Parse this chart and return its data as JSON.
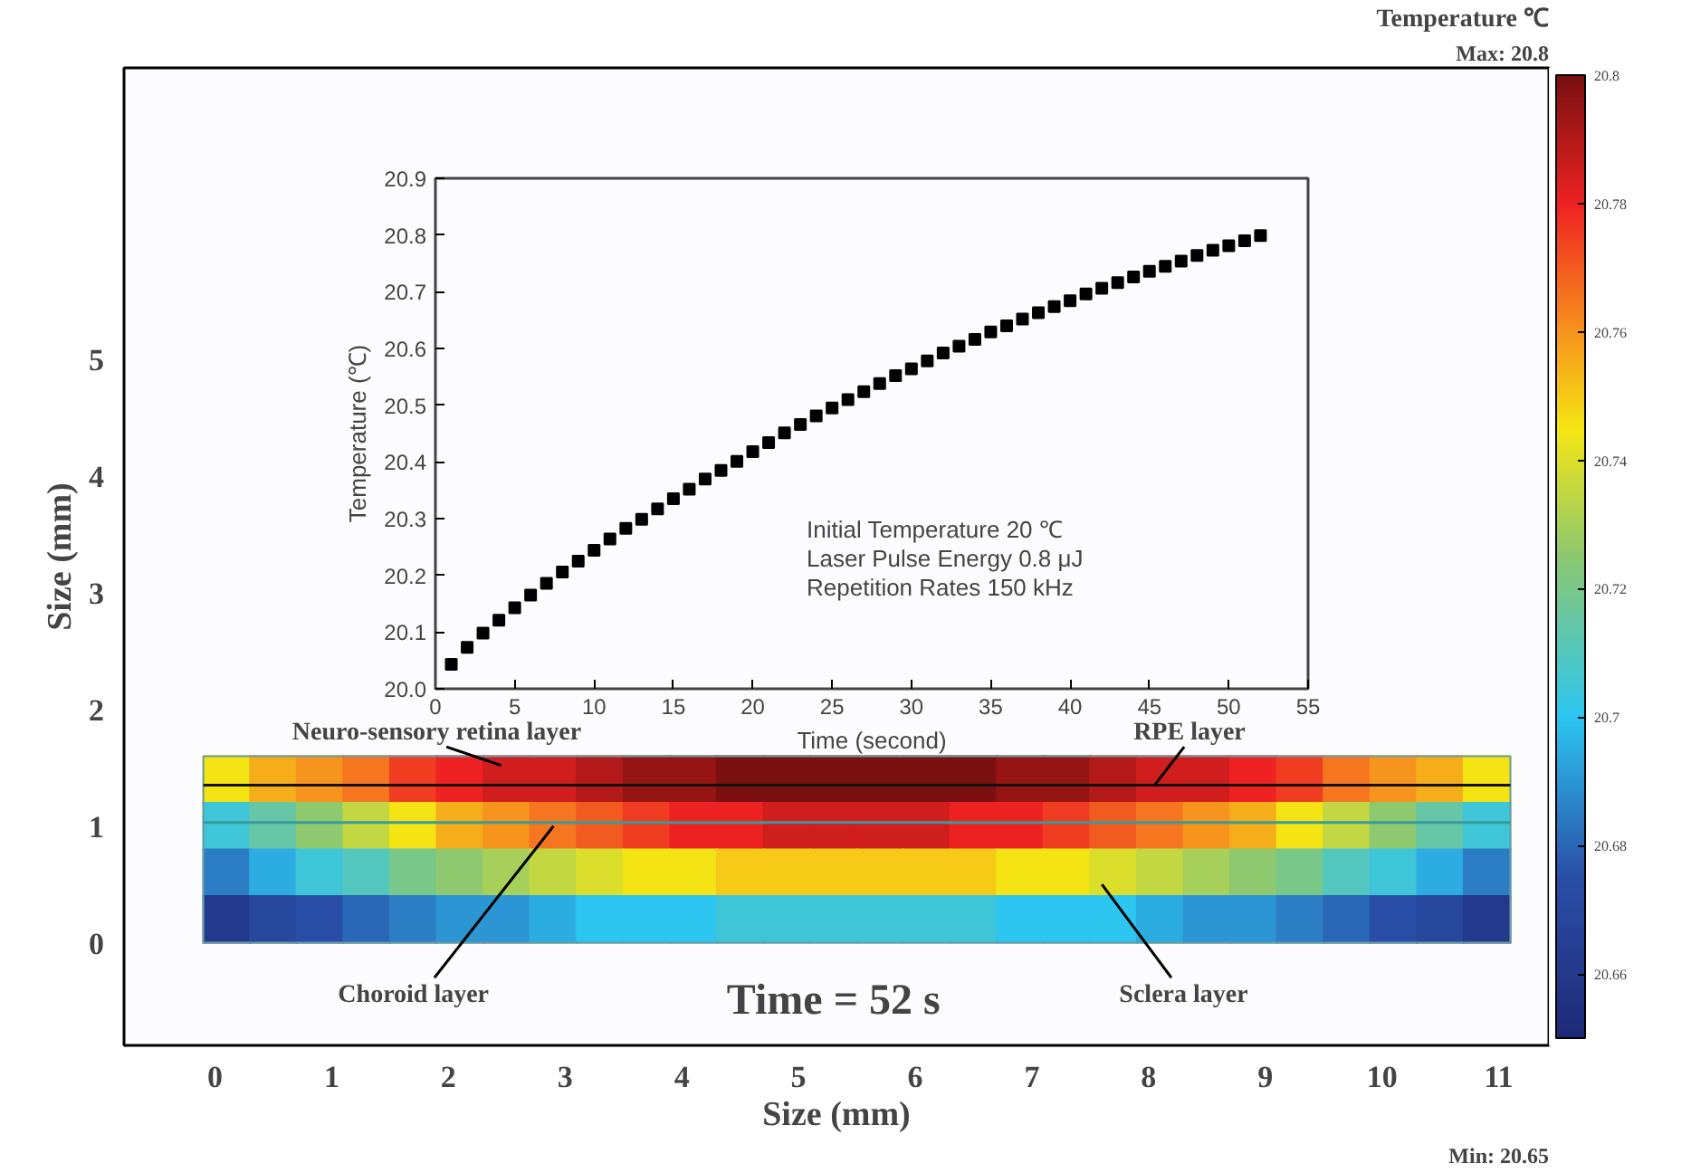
{
  "chart_data": [
    {
      "type": "scatter",
      "xlabel": "Size (mm)",
      "ylabel": "Size (mm)",
      "clabel": "Temperature ℃",
      "marker": "square",
      "x": [
        0.1,
        0.5,
        0.9,
        1.3,
        1.7,
        2.1,
        2.5,
        2.9,
        3.3,
        3.7,
        4.1,
        4.5,
        4.9,
        5.3,
        5.7,
        6.1,
        6.5,
        6.9,
        7.3,
        7.7,
        8.1,
        8.5,
        8.9,
        9.3,
        9.7,
        10.1,
        10.5,
        10.9,
        0.1,
        0.5,
        0.9,
        1.3,
        1.7,
        2.1,
        2.5,
        2.9,
        3.3,
        3.7,
        4.1,
        4.5,
        4.9,
        5.3,
        5.7,
        6.1,
        6.5,
        6.9,
        7.3,
        7.7,
        8.1,
        8.5,
        8.9,
        9.3,
        9.7,
        10.1,
        10.5,
        10.9,
        0.1,
        0.5,
        0.9,
        1.3,
        1.7,
        2.1,
        2.5,
        2.9,
        3.3,
        3.7,
        4.1,
        4.5,
        4.9,
        5.3,
        5.7,
        6.1,
        6.5,
        6.9,
        7.3,
        7.7,
        8.1,
        8.5,
        8.9,
        9.3,
        9.7,
        10.1,
        10.5,
        10.9,
        0.1,
        0.5,
        0.9,
        1.3,
        1.7,
        2.1,
        2.5,
        2.9,
        3.3,
        3.7,
        4.1,
        4.5,
        4.9,
        5.3,
        5.7,
        6.1,
        6.5,
        6.9,
        7.3,
        7.7,
        8.1,
        8.5,
        8.9,
        9.3,
        9.7,
        10.1,
        10.5,
        10.9
      ],
      "values": [
        1.4,
        1.4,
        1.4,
        1.4,
        1.4,
        1.4,
        1.4,
        1.4,
        1.4,
        1.4,
        1.4,
        1.4,
        1.4,
        1.4,
        1.4,
        1.4,
        1.4,
        1.4,
        1.4,
        1.4,
        1.4,
        1.4,
        1.4,
        1.4,
        1.4,
        1.4,
        1.4,
        1.4,
        1.0,
        1.0,
        1.0,
        1.0,
        1.0,
        1.0,
        1.0,
        1.0,
        1.0,
        1.0,
        1.0,
        1.0,
        1.0,
        1.0,
        1.0,
        1.0,
        1.0,
        1.0,
        1.0,
        1.0,
        1.0,
        1.0,
        1.0,
        1.0,
        1.0,
        1.0,
        1.0,
        1.0,
        0.6,
        0.6,
        0.6,
        0.6,
        0.6,
        0.6,
        0.6,
        0.6,
        0.6,
        0.6,
        0.6,
        0.6,
        0.6,
        0.6,
        0.6,
        0.6,
        0.6,
        0.6,
        0.6,
        0.6,
        0.6,
        0.6,
        0.6,
        0.6,
        0.6,
        0.6,
        0.6,
        0.6,
        0.2,
        0.2,
        0.2,
        0.2,
        0.2,
        0.2,
        0.2,
        0.2,
        0.2,
        0.2,
        0.2,
        0.2,
        0.2,
        0.2,
        0.2,
        0.2,
        0.2,
        0.2,
        0.2,
        0.2,
        0.2,
        0.2,
        0.2,
        0.2,
        0.2,
        0.2,
        0.2,
        0.2
      ],
      "cvalues": [
        20.745,
        20.755,
        20.76,
        20.765,
        20.775,
        20.78,
        20.785,
        20.785,
        20.79,
        20.795,
        20.795,
        20.8,
        20.8,
        20.8,
        20.8,
        20.8,
        20.8,
        20.795,
        20.795,
        20.79,
        20.785,
        20.785,
        20.78,
        20.775,
        20.765,
        20.76,
        20.755,
        20.745,
        20.705,
        20.715,
        20.725,
        20.735,
        20.745,
        20.755,
        20.76,
        20.765,
        20.77,
        20.775,
        20.78,
        20.78,
        20.785,
        20.785,
        20.785,
        20.785,
        20.78,
        20.78,
        20.775,
        20.77,
        20.765,
        20.76,
        20.755,
        20.745,
        20.735,
        20.725,
        20.715,
        20.705,
        20.685,
        20.695,
        20.705,
        20.71,
        20.72,
        20.725,
        20.73,
        20.735,
        20.74,
        20.745,
        20.745,
        20.75,
        20.75,
        20.75,
        20.75,
        20.75,
        20.75,
        20.745,
        20.745,
        20.74,
        20.735,
        20.73,
        20.725,
        20.72,
        20.71,
        20.705,
        20.695,
        20.685,
        20.66,
        20.67,
        20.675,
        20.68,
        20.685,
        20.69,
        20.69,
        20.695,
        20.7,
        20.7,
        20.7,
        20.705,
        20.705,
        20.705,
        20.705,
        20.705,
        20.705,
        20.7,
        20.7,
        20.7,
        20.695,
        20.69,
        20.69,
        20.685,
        20.68,
        20.675,
        20.67,
        20.66
      ],
      "clim": [
        20.65,
        20.8
      ],
      "cticks": [
        20.66,
        20.68,
        20.7,
        20.72,
        20.74,
        20.76,
        20.78,
        20.8
      ],
      "xlim": [
        -0.78,
        11.43
      ],
      "ylim": [
        -0.88,
        7.5
      ],
      "xticks": [
        0,
        1,
        2,
        3,
        4,
        5,
        6,
        7,
        8,
        9,
        10,
        11
      ],
      "yticks": [
        0,
        1,
        2,
        3,
        4,
        5
      ],
      "ref_lines": [
        {
          "axis": "y",
          "value": 1.35,
          "color": "#111111"
        },
        {
          "axis": "y",
          "value": 1.03,
          "color": "#3a9a9a"
        }
      ],
      "annotations": [
        "Neuro-sensory retina layer",
        {
          "text": "RPE layer",
          "x": 8.05,
          "y": 1.35
        },
        {
          "text": "Choroid layer",
          "x": 2.9,
          "y": 1.0
        },
        "Sclera layer",
        "Time = 52 s",
        "Max: 20.8",
        "Min: 20.65"
      ],
      "grid": false
    },
    {
      "type": "scatter",
      "xlabel": "Time (second)",
      "ylabel": "Temperature (℃)",
      "marker": "square",
      "x": [
        1,
        2,
        3,
        4,
        5,
        6,
        7,
        8,
        9,
        10,
        11,
        12,
        13,
        14,
        15,
        16,
        17,
        18,
        19,
        20,
        21,
        22,
        23,
        24,
        25,
        26,
        27,
        28,
        29,
        30,
        31,
        32,
        33,
        34,
        35,
        36,
        37,
        38,
        39,
        40,
        41,
        42,
        43,
        44,
        45,
        46,
        47,
        48,
        49,
        50,
        51,
        52
      ],
      "series": [
        {
          "color": "#000000",
          "values": [
            20.043,
            20.073,
            20.098,
            20.121,
            20.143,
            20.165,
            20.186,
            20.206,
            20.225,
            20.244,
            20.264,
            20.283,
            20.299,
            20.317,
            20.335,
            20.352,
            20.37,
            20.385,
            20.401,
            20.418,
            20.434,
            20.451,
            20.466,
            20.481,
            20.495,
            20.51,
            20.524,
            20.538,
            20.552,
            20.564,
            20.578,
            20.592,
            20.604,
            20.616,
            20.629,
            20.64,
            20.652,
            20.663,
            20.674,
            20.684,
            20.696,
            20.706,
            20.716,
            20.726,
            20.736,
            20.745,
            20.754,
            20.764,
            20.773,
            20.781,
            20.79,
            20.799
          ]
        }
      ],
      "xlim": [
        0,
        55
      ],
      "ylim": [
        20.0,
        20.9
      ],
      "xticks": [
        0,
        5,
        10,
        15,
        20,
        25,
        30,
        35,
        40,
        45,
        50,
        55
      ],
      "yticks": [
        {
          "value": 20.0,
          "label": "20.0"
        },
        20.1,
        20.2,
        20.3,
        20.4,
        20.5,
        20.6,
        20.7,
        20.8,
        20.9
      ],
      "annotations": [
        "Initial Temperature 20 ℃",
        "Laser Pulse Energy 0.8 μJ",
        "Repetition Rates 150 kHz"
      ],
      "grid": false
    }
  ]
}
